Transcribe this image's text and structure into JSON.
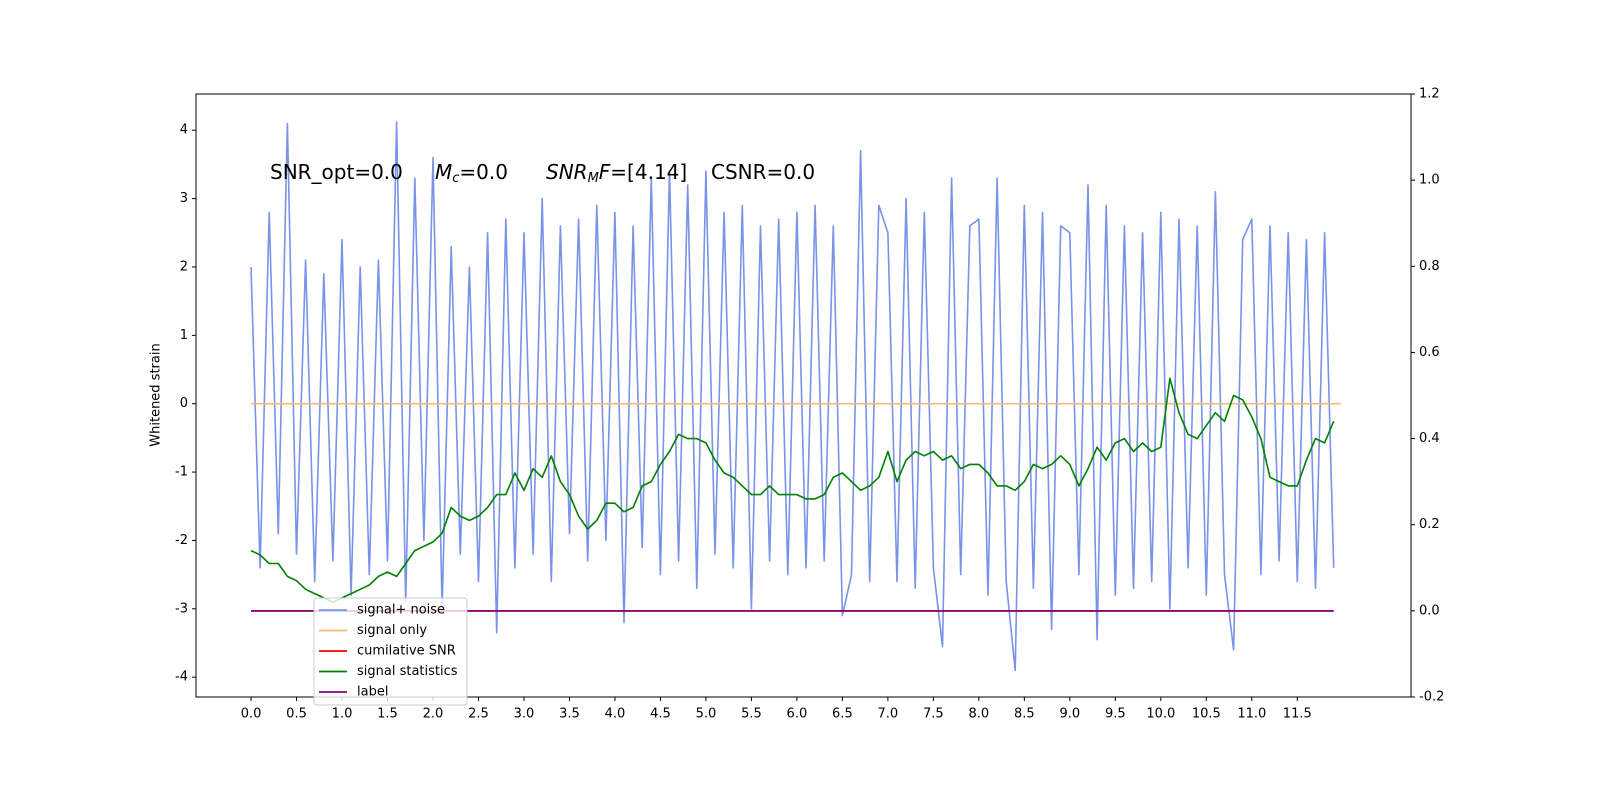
{
  "chart_data": {
    "type": "line",
    "ylabel": "Whitened strain",
    "xlim": [
      -0.605,
      12.75
    ],
    "ylim": [
      -4.29,
      4.53
    ],
    "y2lim": [
      -0.2,
      1.2
    ],
    "xticks": [
      {
        "value": 0,
        "label": "0.0"
      },
      {
        "value": 0.5,
        "label": "0.5"
      },
      {
        "value": 1,
        "label": "1.0"
      },
      {
        "value": 1.5,
        "label": "1.5"
      },
      {
        "value": 2,
        "label": "2.0"
      },
      {
        "value": 2.5,
        "label": "2.5"
      },
      {
        "value": 3,
        "label": "3.0"
      },
      {
        "value": 3.5,
        "label": "3.5"
      },
      {
        "value": 4,
        "label": "4.0"
      },
      {
        "value": 4.5,
        "label": "4.5"
      },
      {
        "value": 5,
        "label": "5.0"
      },
      {
        "value": 5.5,
        "label": "5.5"
      },
      {
        "value": 6,
        "label": "6.0"
      },
      {
        "value": 6.5,
        "label": "6.5"
      },
      {
        "value": 7,
        "label": "7.0"
      },
      {
        "value": 7.5,
        "label": "7.5"
      },
      {
        "value": 8,
        "label": "8.0"
      },
      {
        "value": 8.5,
        "label": "8.5"
      },
      {
        "value": 9,
        "label": "9.0"
      },
      {
        "value": 9.5,
        "label": "9.5"
      },
      {
        "value": 10,
        "label": "10.0"
      },
      {
        "value": 10.5,
        "label": "10.5"
      },
      {
        "value": 11,
        "label": "11.0"
      },
      {
        "value": 11.5,
        "label": "11.5"
      }
    ],
    "yticks": [
      -4,
      -3,
      -2,
      -1,
      0,
      1,
      2,
      3,
      4
    ],
    "y2ticks": [
      -0.2,
      {
        "value": 0,
        "label": "0.0"
      },
      0.2,
      0.4,
      0.6,
      0.8,
      {
        "value": 1,
        "label": "1.0"
      },
      1.2
    ],
    "legend": "lower left",
    "annotations": [
      [
        {
          "text": "SNR_opt=0.0",
          "style": "normal"
        }
      ],
      [
        {
          "text": "M",
          "style": "italic"
        },
        {
          "text": "c",
          "style": "sub"
        },
        {
          "text": "=0.0",
          "style": "normal"
        }
      ],
      [
        {
          "text": "SNR",
          "style": "italic"
        },
        {
          "text": "M",
          "style": "sub"
        },
        {
          "text": "F",
          "style": "italic"
        },
        {
          "text": "=[4.14]",
          "style": "normal"
        }
      ],
      [
        {
          "text": "CSNR=0.0",
          "style": "normal"
        }
      ]
    ],
    "x": [
      0,
      0.1,
      0.2,
      0.3,
      0.4,
      0.5,
      0.6,
      0.7,
      0.8,
      0.9,
      1,
      1.1,
      1.2,
      1.3,
      1.4,
      1.5,
      1.6,
      1.7,
      1.8,
      1.9,
      2,
      2.1,
      2.2,
      2.3,
      2.4,
      2.5,
      2.6,
      2.7,
      2.8,
      2.9,
      3,
      3.1,
      3.2,
      3.3,
      3.4,
      3.5,
      3.6,
      3.7,
      3.8,
      3.9,
      4,
      4.1,
      4.2,
      4.3,
      4.4,
      4.5,
      4.6,
      4.7,
      4.8,
      4.9,
      5,
      5.1,
      5.2,
      5.3,
      5.4,
      5.5,
      5.6,
      5.7,
      5.8,
      5.9,
      6,
      6.1,
      6.2,
      6.3,
      6.4,
      6.5,
      6.6,
      6.7,
      6.8,
      6.9,
      7,
      7.1,
      7.2,
      7.3,
      7.4,
      7.5,
      7.6,
      7.7,
      7.8,
      7.9,
      8,
      8.1,
      8.2,
      8.3,
      8.4,
      8.5,
      8.6,
      8.7,
      8.8,
      8.9,
      9,
      9.1,
      9.2,
      9.3,
      9.4,
      9.5,
      9.6,
      9.7,
      9.8,
      9.9,
      10,
      10.1,
      10.2,
      10.3,
      10.4,
      10.5,
      10.6,
      10.7,
      10.8,
      10.9,
      11,
      11.1,
      11.2,
      11.3,
      11.4,
      11.5,
      11.6,
      11.7,
      11.8,
      11.9
    ],
    "series": [
      {
        "name": "signal+ noise",
        "color": "#7893e8",
        "axis": "y",
        "values": [
          2.0,
          -2.4,
          2.8,
          -1.9,
          4.1,
          -2.2,
          2.1,
          -2.6,
          1.9,
          -2.3,
          2.4,
          -2.8,
          2.0,
          -2.5,
          2.1,
          -2.3,
          4.12,
          -2.9,
          3.3,
          -2.0,
          3.6,
          -3.0,
          2.3,
          -2.2,
          2.0,
          -2.6,
          2.5,
          -3.35,
          2.7,
          -2.4,
          2.5,
          -2.2,
          3.0,
          -2.6,
          2.6,
          -1.9,
          2.7,
          -2.3,
          2.9,
          -2.0,
          2.8,
          -3.2,
          2.6,
          -2.1,
          3.3,
          -2.5,
          3.4,
          -2.3,
          3.2,
          -2.7,
          3.4,
          -2.2,
          2.8,
          -2.4,
          2.9,
          -3.0,
          2.6,
          -2.3,
          2.7,
          -2.5,
          2.8,
          -2.4,
          2.9,
          -2.3,
          2.6,
          -3.1,
          -2.5,
          3.7,
          -2.6,
          2.9,
          2.5,
          -2.6,
          3.0,
          -2.7,
          2.8,
          -2.4,
          -3.55,
          3.3,
          -2.5,
          2.6,
          2.7,
          -2.8,
          3.3,
          -2.6,
          -3.9,
          2.9,
          -2.7,
          2.8,
          -3.3,
          2.6,
          2.5,
          -2.5,
          3.2,
          -3.45,
          2.9,
          -2.8,
          2.6,
          -2.7,
          2.5,
          -2.6,
          2.8,
          -3.0,
          2.7,
          -2.4,
          2.6,
          -2.8,
          3.1,
          -2.5,
          -3.6,
          2.4,
          2.7,
          -2.5,
          2.6,
          -2.3,
          2.5,
          -2.6,
          2.4,
          -2.7,
          2.5,
          -2.4
        ]
      },
      {
        "name": "signal only",
        "color": "#f5b97a",
        "axis": "y",
        "x": [
          0,
          11.98
        ],
        "values": [
          0,
          0
        ]
      },
      {
        "name": "cumilative SNR",
        "color": "#ff0000",
        "axis": "y2",
        "x": [
          0,
          11.9
        ],
        "values": [
          0,
          0
        ]
      },
      {
        "name": "signal statistics",
        "color": "#008000",
        "axis": "y2",
        "values": [
          0.14,
          0.13,
          0.11,
          0.11,
          0.08,
          0.07,
          0.05,
          0.04,
          0.03,
          0.02,
          0.03,
          0.04,
          0.05,
          0.06,
          0.08,
          0.09,
          0.08,
          0.11,
          0.14,
          0.15,
          0.16,
          0.18,
          0.24,
          0.22,
          0.21,
          0.22,
          0.24,
          0.27,
          0.27,
          0.32,
          0.28,
          0.33,
          0.31,
          0.36,
          0.3,
          0.27,
          0.22,
          0.19,
          0.21,
          0.25,
          0.25,
          0.23,
          0.24,
          0.29,
          0.3,
          0.34,
          0.37,
          0.41,
          0.4,
          0.4,
          0.39,
          0.35,
          0.32,
          0.31,
          0.29,
          0.27,
          0.27,
          0.29,
          0.27,
          0.27,
          0.27,
          0.26,
          0.26,
          0.27,
          0.31,
          0.32,
          0.3,
          0.28,
          0.29,
          0.31,
          0.37,
          0.3,
          0.35,
          0.37,
          0.36,
          0.37,
          0.35,
          0.36,
          0.33,
          0.34,
          0.34,
          0.32,
          0.29,
          0.29,
          0.28,
          0.3,
          0.34,
          0.33,
          0.34,
          0.36,
          0.34,
          0.29,
          0.33,
          0.38,
          0.35,
          0.39,
          0.4,
          0.37,
          0.39,
          0.37,
          0.38,
          0.54,
          0.46,
          0.41,
          0.4,
          0.43,
          0.46,
          0.44,
          0.5,
          0.49,
          0.45,
          0.4,
          0.31,
          0.3,
          0.29,
          0.29,
          0.35,
          0.4,
          0.39,
          0.44
        ]
      },
      {
        "name": "label",
        "color": "#800080",
        "axis": "y2",
        "x": [
          0,
          11.9
        ],
        "values": [
          0,
          0
        ]
      }
    ]
  }
}
